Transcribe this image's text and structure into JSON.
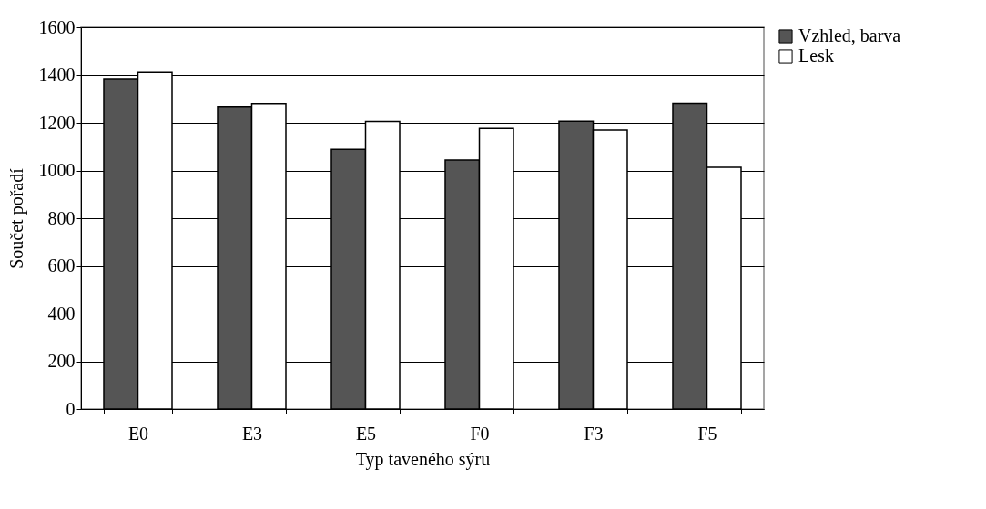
{
  "chart_data": {
    "type": "bar",
    "xlabel": "Typ taveného sýru",
    "ylabel": "Součet pořadí",
    "categories": [
      "E0",
      "E3",
      "E5",
      "F0",
      "F3",
      "F5"
    ],
    "series": [
      {
        "name": "Vzhled, barva",
        "color": "#555555",
        "values": [
          1383,
          1266,
          1089,
          1044,
          1207,
          1282
        ]
      },
      {
        "name": "Lesk",
        "color": "#ffffff",
        "values": [
          1412,
          1281,
          1206,
          1176,
          1170,
          1013
        ]
      }
    ],
    "ylim": [
      0,
      1600
    ],
    "yticks": [
      0,
      200,
      400,
      600,
      800,
      1000,
      1200,
      1400,
      1600
    ],
    "grid": "y",
    "legend": "right"
  }
}
